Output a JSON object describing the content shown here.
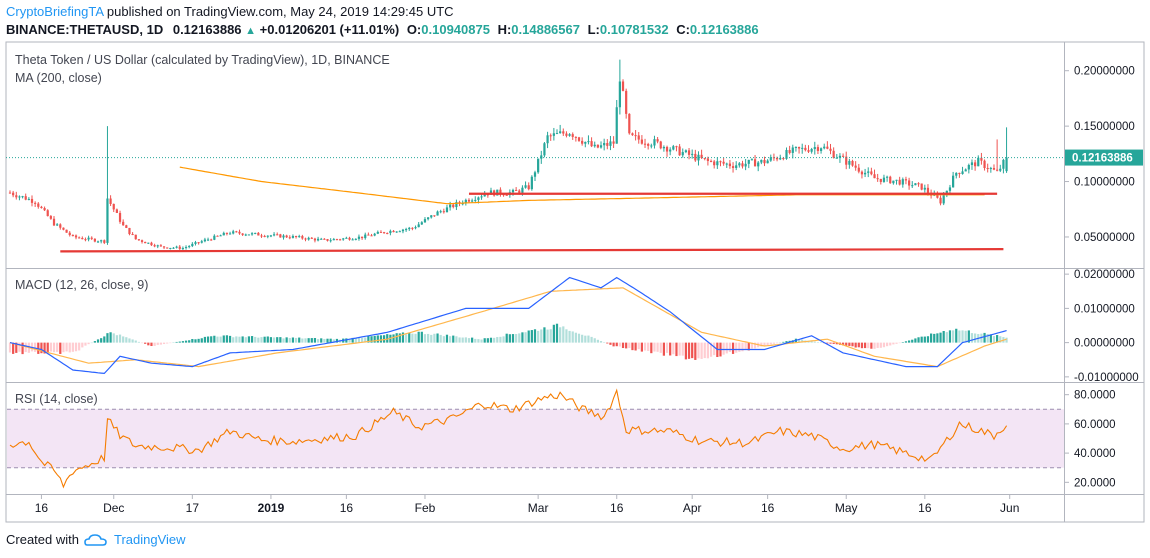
{
  "header": {
    "author": "CryptoBriefingTA",
    "published_text": "published on TradingView.com, May 24, 2019 14:29:45 UTC",
    "symbol": "BINANCE:THETAUSD, 1D",
    "last": "0.12163886",
    "change": "+0.01206201 (+11.01%)",
    "o_label": "O:",
    "o_value": "0.10940875",
    "h_label": "H:",
    "h_value": "0.14886567",
    "l_label": "L:",
    "l_value": "0.10781532",
    "c_label": "C:",
    "c_value": "0.12163886"
  },
  "panes": {
    "price_title": "Theta Token / US Dollar (calculated by TradingView), 1D, BINANCE",
    "ma_title": "MA (200, close)",
    "macd_title": "MACD (12, 26, close, 9)",
    "rsi_title": "RSI (14, close)"
  },
  "footer": {
    "created_with": "Created with",
    "brand": "TradingView"
  },
  "colors": {
    "up": "#26a69a",
    "down": "#ef5350",
    "ma": "#ff9800",
    "support": "#e53935",
    "macd": "#2962ff",
    "signal": "#ffb74d",
    "rsi": "#f57c00",
    "rsi_band": "#f3e5f5",
    "last_price_bg": "#26a69a"
  },
  "chart_data": [
    {
      "type": "candlestick",
      "title": "Theta Token / US Dollar (calculated by TradingView), 1D, BINANCE",
      "x_ticks": [
        "16",
        "Dec",
        "17",
        "2019",
        "16",
        "Feb",
        "Mar",
        "16",
        "Apr",
        "16",
        "May",
        "16",
        "Jun"
      ],
      "y_ticks": [
        "0.20000000",
        "0.15000000",
        "0.10000000",
        "0.05000000"
      ],
      "ylim": [
        0.022,
        0.225
      ],
      "last_price": "0.12163886",
      "close_series_approx": [
        [
          0,
          0.09
        ],
        [
          8,
          0.082
        ],
        [
          14,
          0.062
        ],
        [
          20,
          0.05
        ],
        [
          25,
          0.048
        ],
        [
          30,
          0.046
        ],
        [
          31,
          0.085
        ],
        [
          36,
          0.06
        ],
        [
          40,
          0.048
        ],
        [
          48,
          0.041
        ],
        [
          55,
          0.04
        ],
        [
          62,
          0.047
        ],
        [
          70,
          0.054
        ],
        [
          80,
          0.052
        ],
        [
          90,
          0.05
        ],
        [
          100,
          0.047
        ],
        [
          112,
          0.05
        ],
        [
          120,
          0.055
        ],
        [
          128,
          0.058
        ],
        [
          136,
          0.072
        ],
        [
          144,
          0.082
        ],
        [
          152,
          0.09
        ],
        [
          160,
          0.09
        ],
        [
          165,
          0.095
        ],
        [
          171,
          0.14
        ],
        [
          178,
          0.145
        ],
        [
          186,
          0.13
        ],
        [
          192,
          0.135
        ],
        [
          194,
          0.195
        ],
        [
          197,
          0.14
        ],
        [
          205,
          0.135
        ],
        [
          215,
          0.125
        ],
        [
          222,
          0.118
        ],
        [
          230,
          0.115
        ],
        [
          240,
          0.118
        ],
        [
          250,
          0.128
        ],
        [
          258,
          0.132
        ],
        [
          266,
          0.118
        ],
        [
          275,
          0.103
        ],
        [
          283,
          0.1
        ],
        [
          290,
          0.095
        ],
        [
          296,
          0.082
        ],
        [
          301,
          0.108
        ],
        [
          308,
          0.118
        ],
        [
          314,
          0.108
        ],
        [
          317,
          0.121
        ]
      ],
      "ma200_approx": [
        [
          54,
          0.113
        ],
        [
          80,
          0.1
        ],
        [
          110,
          0.09
        ],
        [
          139,
          0.08
        ],
        [
          165,
          0.083
        ],
        [
          200,
          0.085
        ],
        [
          250,
          0.088
        ],
        [
          310,
          0.088
        ]
      ],
      "lines": [
        {
          "label": "support",
          "from": [
            146,
            0.089
          ],
          "to": [
            314,
            0.089
          ]
        },
        {
          "label": "support",
          "from": [
            16,
            0.037
          ],
          "to": [
            316,
            0.039
          ]
        }
      ]
    },
    {
      "type": "line",
      "title": "MACD (12, 26, close, 9)",
      "y_ticks": [
        "0.02000000",
        "0.01000000",
        "0.00000000",
        "-0.01000000"
      ],
      "ylim": [
        -0.0115,
        0.0215
      ],
      "macd_approx": [
        [
          0,
          0
        ],
        [
          10,
          -0.002
        ],
        [
          20,
          -0.008
        ],
        [
          30,
          -0.009
        ],
        [
          35,
          -0.004
        ],
        [
          45,
          -0.006
        ],
        [
          58,
          -0.007
        ],
        [
          70,
          -0.003
        ],
        [
          90,
          -0.002
        ],
        [
          120,
          0.003
        ],
        [
          145,
          0.01
        ],
        [
          165,
          0.01
        ],
        [
          178,
          0.019
        ],
        [
          188,
          0.016
        ],
        [
          193,
          0.019
        ],
        [
          200,
          0.015
        ],
        [
          210,
          0.009
        ],
        [
          225,
          -0.002
        ],
        [
          240,
          -0.002
        ],
        [
          255,
          0.002
        ],
        [
          265,
          -0.003
        ],
        [
          285,
          -0.007
        ],
        [
          295,
          -0.007
        ],
        [
          303,
          0.0
        ],
        [
          317,
          0.0035
        ]
      ],
      "signal_approx": [
        [
          0,
          0
        ],
        [
          25,
          -0.006
        ],
        [
          40,
          -0.005
        ],
        [
          60,
          -0.007
        ],
        [
          85,
          -0.003
        ],
        [
          120,
          0.001
        ],
        [
          150,
          0.009
        ],
        [
          172,
          0.015
        ],
        [
          195,
          0.016
        ],
        [
          220,
          0.003
        ],
        [
          240,
          -0.001
        ],
        [
          260,
          0.001
        ],
        [
          275,
          -0.004
        ],
        [
          295,
          -0.007
        ],
        [
          310,
          -0.001
        ],
        [
          317,
          0.001
        ]
      ],
      "histogram_approx": [
        [
          20,
          -0.003
        ],
        [
          32,
          0.003
        ],
        [
          45,
          -0.001
        ],
        [
          65,
          0.002
        ],
        [
          105,
          0.001
        ],
        [
          130,
          0.003
        ],
        [
          150,
          0.001
        ],
        [
          175,
          0.005
        ],
        [
          192,
          -0.001
        ],
        [
          205,
          -0.003
        ],
        [
          220,
          -0.005
        ],
        [
          250,
          0.001
        ],
        [
          275,
          -0.002
        ],
        [
          300,
          0.004
        ],
        [
          317,
          0.0015
        ]
      ]
    },
    {
      "type": "line",
      "title": "RSI (14, close)",
      "y_ticks": [
        "80.0000",
        "60.0000",
        "40.0000",
        "20.0000"
      ],
      "ylim": [
        12,
        88
      ],
      "band": [
        30,
        70
      ],
      "rsi_approx": [
        [
          0,
          46
        ],
        [
          6,
          48
        ],
        [
          10,
          34
        ],
        [
          14,
          28
        ],
        [
          17,
          18
        ],
        [
          20,
          28
        ],
        [
          25,
          32
        ],
        [
          30,
          37
        ],
        [
          31,
          63
        ],
        [
          35,
          52
        ],
        [
          40,
          45
        ],
        [
          50,
          44
        ],
        [
          60,
          42
        ],
        [
          70,
          55
        ],
        [
          80,
          49
        ],
        [
          90,
          48
        ],
        [
          100,
          50
        ],
        [
          110,
          52
        ],
        [
          122,
          68
        ],
        [
          130,
          58
        ],
        [
          140,
          63
        ],
        [
          145,
          68
        ],
        [
          150,
          74
        ],
        [
          160,
          70
        ],
        [
          170,
          78
        ],
        [
          175,
          80
        ],
        [
          182,
          70
        ],
        [
          189,
          65
        ],
        [
          193,
          82
        ],
        [
          196,
          56
        ],
        [
          210,
          55
        ],
        [
          220,
          48
        ],
        [
          235,
          47
        ],
        [
          245,
          55
        ],
        [
          255,
          52
        ],
        [
          265,
          43
        ],
        [
          275,
          46
        ],
        [
          285,
          40
        ],
        [
          293,
          35
        ],
        [
          297,
          46
        ],
        [
          302,
          60
        ],
        [
          308,
          56
        ],
        [
          313,
          52
        ],
        [
          317,
          60
        ]
      ]
    }
  ]
}
